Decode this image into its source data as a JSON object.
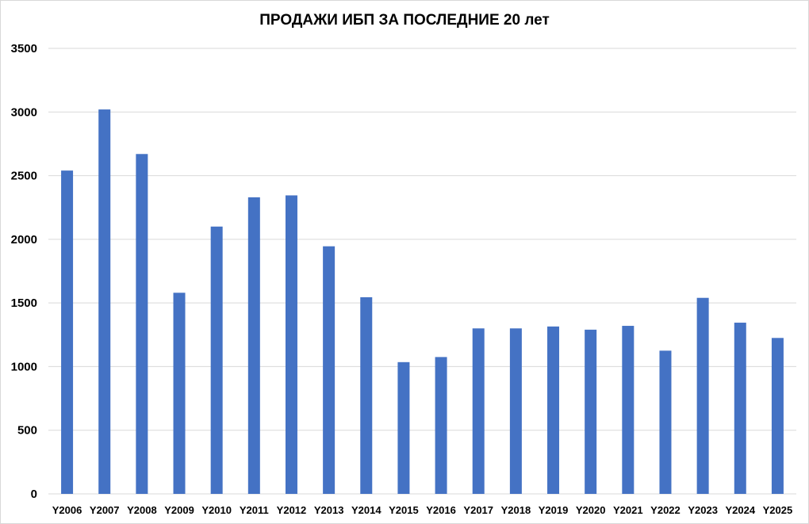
{
  "chart_data": {
    "type": "bar",
    "title": "ПРОДАЖИ ИБП ЗА ПОСЛЕДНИЕ 20 лет",
    "xlabel": "",
    "ylabel": "",
    "categories": [
      "Y2006",
      "Y2007",
      "Y2008",
      "Y2009",
      "Y2010",
      "Y2011",
      "Y2012",
      "Y2013",
      "Y2014",
      "Y2015",
      "Y2016",
      "Y2017",
      "Y2018",
      "Y2019",
      "Y2020",
      "Y2021",
      "Y2022",
      "Y2023",
      "Y2024",
      "Y2025"
    ],
    "series": [
      {
        "values": [
          2540,
          3020,
          2670,
          1580,
          2100,
          2330,
          2345,
          1945,
          1545,
          1035,
          1075,
          1300,
          1300,
          1315,
          1290,
          1320,
          1125,
          1540,
          1345,
          1225
        ]
      }
    ],
    "ylim": [
      0,
      3500
    ],
    "yticks": [
      0,
      500,
      1000,
      1500,
      2000,
      2500,
      3000,
      3500
    ],
    "grid": true,
    "legend": "none",
    "bar_color": "#4472C4",
    "grid_color": "#d9d9d9"
  }
}
